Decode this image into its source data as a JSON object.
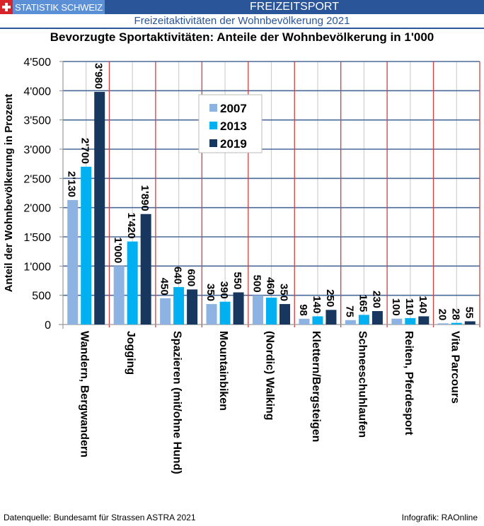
{
  "header": {
    "brand": "STATISTIK SCHWEIZ",
    "section": "FREIZEITSPORT",
    "subtitle": "Freizeitaktivitäten der Wohnbevölkerung 2021"
  },
  "footer": {
    "source": "Datenquelle: Bundesamt für Strassen ASTRA 2021",
    "credit": "Infografik: RAOnline"
  },
  "colors": {
    "header_bg": "#2a5599",
    "brand_bg": "#5b8fd6",
    "swiss_red": "#d8232a",
    "series_2007": "#8db3e2",
    "series_2013": "#00b0f0",
    "series_2019": "#17375e",
    "category_divider": "#d04040",
    "gridline": "#4a6a9a"
  },
  "chart_data": {
    "type": "bar",
    "title": "Bevorzugte Sportaktivitäten: Anteile der Wohnbevölkerung in 1'000",
    "xlabel": "",
    "ylabel": "Anteil der Wohnbevölkerung in Prozent",
    "ylim": [
      0,
      4500
    ],
    "yticks": [
      0,
      500,
      1000,
      1500,
      2000,
      2500,
      3000,
      3500,
      4000,
      4500
    ],
    "ytick_labels": [
      "0",
      "500",
      "1'000",
      "1'500",
      "2'000",
      "2'500",
      "3'000",
      "3'500",
      "4'000",
      "4'500"
    ],
    "grid": true,
    "legend_position": "top-center",
    "categories": [
      "Wandern, Bergwandern",
      "Jogging",
      "Spazieren (mit/ohne Hund)",
      "Mountainbiken",
      "(Nordic) Walking",
      "Klettern/Bergsteigen",
      "Schneeschuhlaufen",
      "Reiten, Pferdesport",
      "Vita Parcours"
    ],
    "series": [
      {
        "name": "2007",
        "values": [
          2130,
          1000,
          450,
          350,
          500,
          98,
          75,
          100,
          20
        ],
        "labels": [
          "2'130",
          "1'000",
          "450",
          "350",
          "500",
          "98",
          "75",
          "100",
          "20"
        ]
      },
      {
        "name": "2013",
        "values": [
          2700,
          1420,
          640,
          390,
          460,
          140,
          165,
          110,
          28
        ],
        "labels": [
          "2'700",
          "1'420",
          "640",
          "390",
          "460",
          "140",
          "165",
          "110",
          "28"
        ]
      },
      {
        "name": "2019",
        "values": [
          3980,
          1890,
          600,
          550,
          350,
          250,
          230,
          140,
          55
        ],
        "labels": [
          "3'980",
          "1'890",
          "600",
          "550",
          "350",
          "250",
          "230",
          "140",
          "55"
        ]
      }
    ]
  }
}
